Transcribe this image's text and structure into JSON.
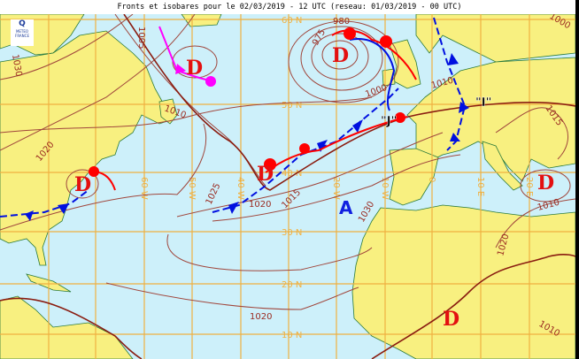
{
  "title": "Fronts et isobares pour le 02/03/2019 - 12 UTC (reseau: 01/03/2019 - 00 UTC)",
  "logo": {
    "mark": "Q",
    "line1": "METEO",
    "line2": "FRANCE"
  },
  "colors": {
    "ocean": "#cdf0fa",
    "land": "#f8f080",
    "grid": "#f0b040",
    "isobar": "#a0463c",
    "warm_front": "#ff0000",
    "cold_front": "#0010e0",
    "occluded_front": "#ff00ff",
    "low": "#e31010",
    "high": "#1020e0"
  },
  "grid_labels": {
    "lat": [
      "60 N",
      "50 N",
      "40 N",
      "30 N",
      "20 N",
      "10 N"
    ],
    "lon": [
      "60 W",
      "50 W",
      "40 W",
      "20 W",
      "10 W",
      "0",
      "10 E",
      "20 E"
    ]
  },
  "pressure_centers": {
    "lows": [
      "D",
      "D",
      "D",
      "D",
      "D",
      "D"
    ],
    "high": "A"
  },
  "jet_labels": [
    "\"J\"",
    "\"I\""
  ],
  "isobar_labels": [
    "1030",
    "1020",
    "1010",
    "1025",
    "1020",
    "1015",
    "980",
    "975",
    "1000",
    "1010",
    "1015",
    "1010",
    "1030",
    "1020",
    "1020",
    "1010",
    "1000",
    "1005"
  ]
}
